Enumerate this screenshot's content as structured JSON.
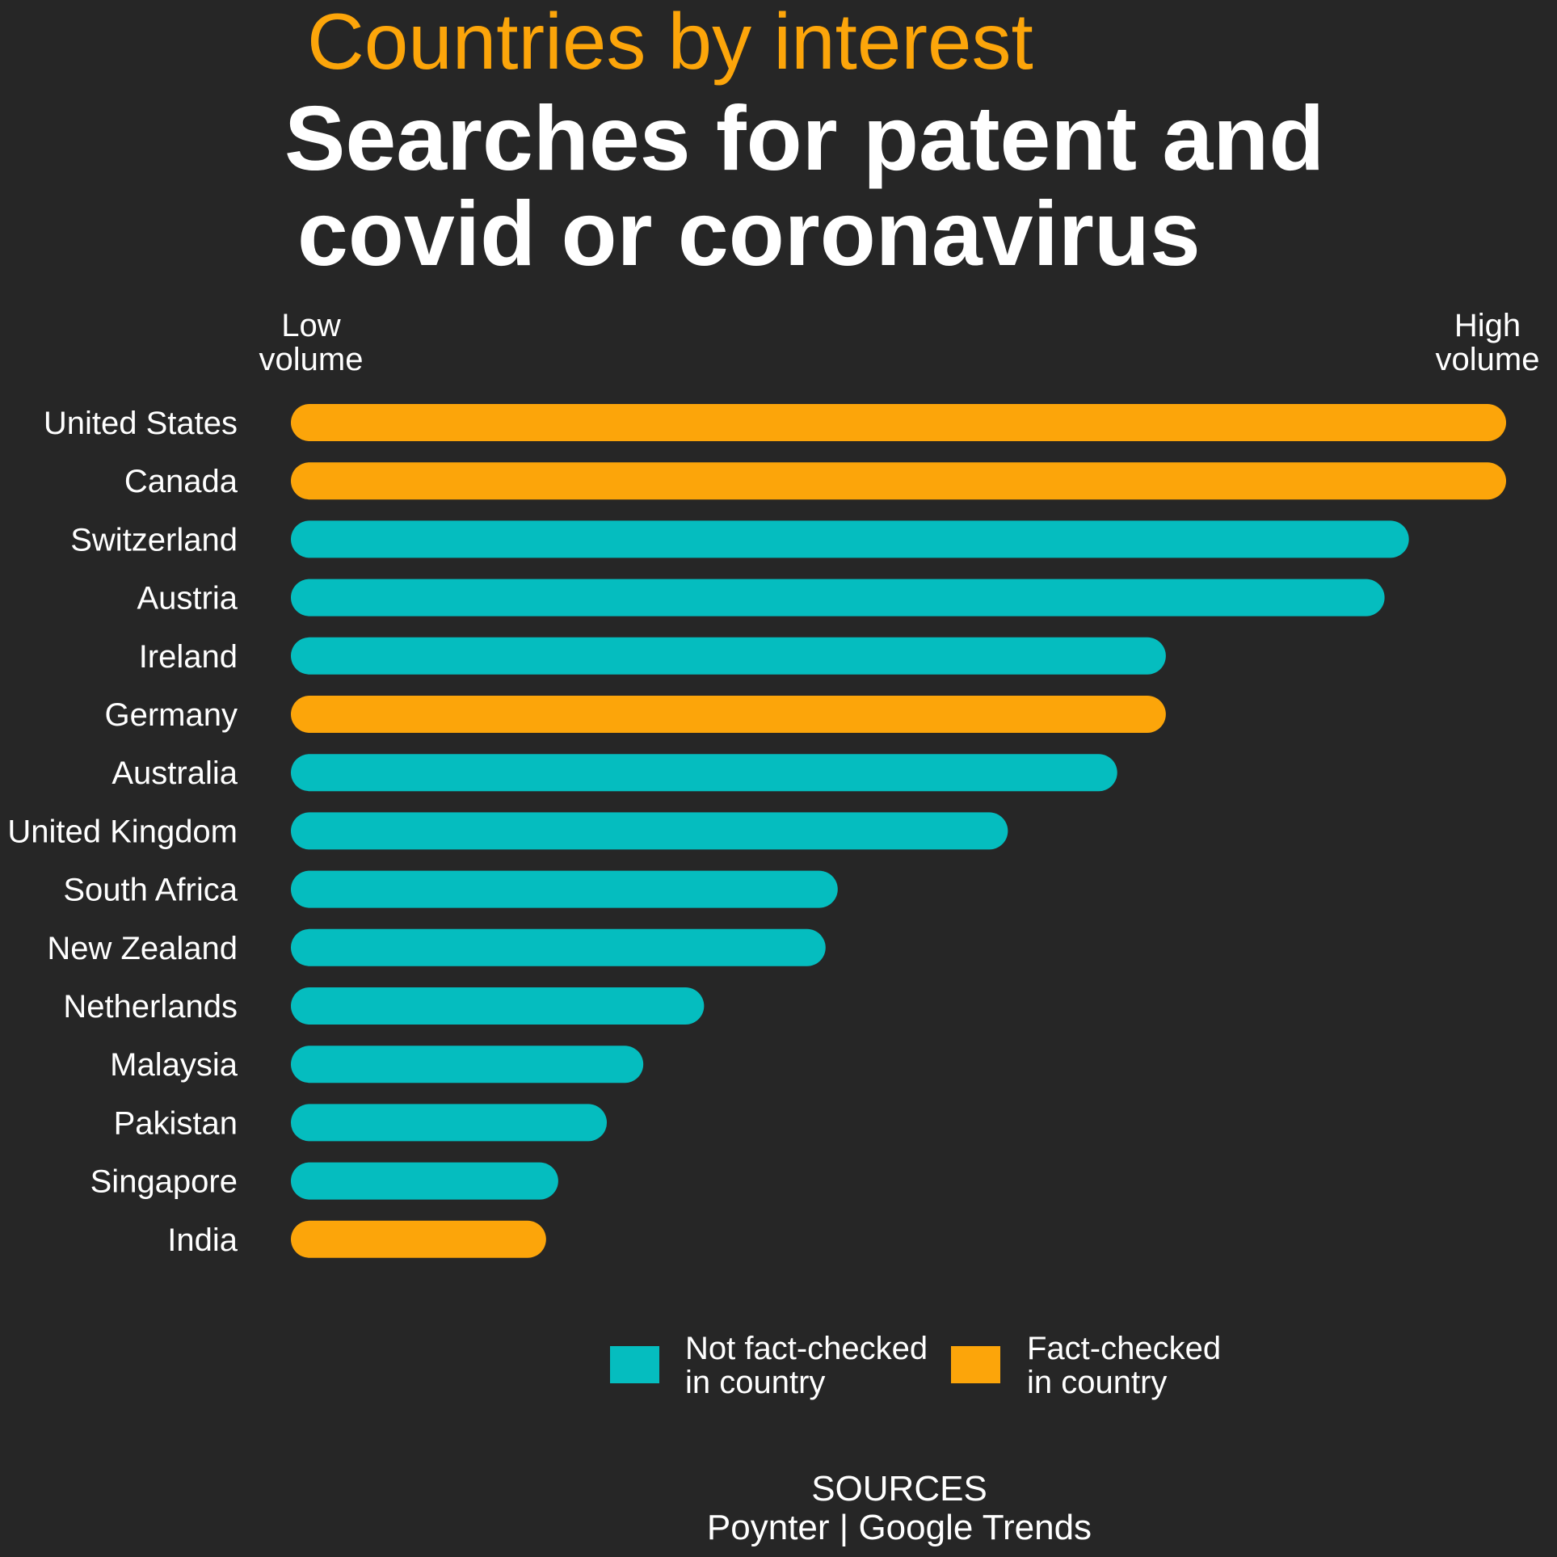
{
  "chart_data": {
    "type": "bar",
    "orientation": "horizontal",
    "kicker": "Countries by interest",
    "title_lines": [
      "Searches for patent and",
      "covid or coronavirus"
    ],
    "scale_low_label": [
      "Low",
      "volume"
    ],
    "scale_high_label": [
      "High",
      "volume"
    ],
    "xlim": [
      0,
      100
    ],
    "categories": [
      "United States",
      "Canada",
      "Switzerland",
      "Austria",
      "Ireland",
      "Germany",
      "Australia",
      "United Kingdom",
      "South Africa",
      "New Zealand",
      "Netherlands",
      "Malaysia",
      "Pakistan",
      "Singapore",
      "India"
    ],
    "values": [
      100,
      100,
      92,
      90,
      72,
      72,
      68,
      59,
      45,
      44,
      34,
      29,
      26,
      22,
      21
    ],
    "groups": [
      "fact-checked",
      "fact-checked",
      "not-fact-checked",
      "not-fact-checked",
      "not-fact-checked",
      "fact-checked",
      "not-fact-checked",
      "not-fact-checked",
      "not-fact-checked",
      "not-fact-checked",
      "not-fact-checked",
      "not-fact-checked",
      "not-fact-checked",
      "not-fact-checked",
      "fact-checked"
    ],
    "legend": [
      {
        "key": "not-fact-checked",
        "lines": [
          "Not fact-checked",
          "in country"
        ],
        "color": "#05BDBF"
      },
      {
        "key": "fact-checked",
        "lines": [
          "Fact-checked",
          "in country"
        ],
        "color": "#FCA50A"
      }
    ],
    "legend_position": "bottom-center",
    "grid": false,
    "sources_heading": "SOURCES",
    "sources_text": "Poynter | Google Trends"
  },
  "colors": {
    "background": "#262626",
    "kicker": "#FCA50A",
    "text": "#FFFFFF"
  }
}
